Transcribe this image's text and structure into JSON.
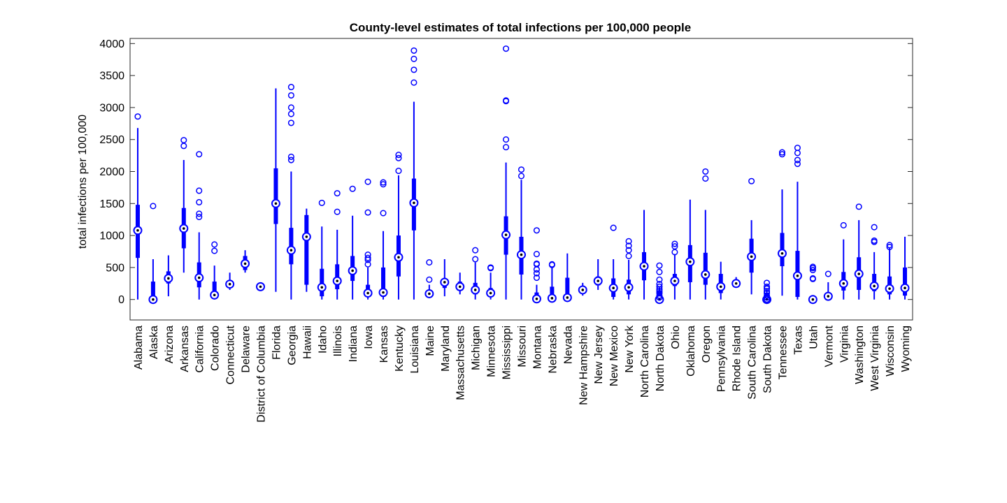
{
  "chart_data": {
    "type": "boxplot",
    "title": "County-level estimates of total infections per 100,000 people",
    "ylabel": "total infections per 100,000",
    "xlabel": "",
    "ylim": [
      -320,
      4080
    ],
    "yticks": [
      0,
      500,
      1000,
      1500,
      2000,
      2500,
      3000,
      3500,
      4000
    ],
    "grid": false,
    "color": "#0000ff",
    "categories": [
      "Alabama",
      "Alaska",
      "Arizona",
      "Arkansas",
      "California",
      "Colorado",
      "Connecticut",
      "Delaware",
      "District of Columbia",
      "Florida",
      "Georgia",
      "Hawaii",
      "Idaho",
      "Illinois",
      "Indiana",
      "Iowa",
      "Kansas",
      "Kentucky",
      "Louisiana",
      "Maine",
      "Maryland",
      "Massachusetts",
      "Michigan",
      "Minnesota",
      "Mississippi",
      "Missouri",
      "Montana",
      "Nebraska",
      "Nevada",
      "New Hampshire",
      "New Jersey",
      "New Mexico",
      "New York",
      "North Carolina",
      "North Dakota",
      "Ohio",
      "Oklahoma",
      "Oregon",
      "Pennsylvania",
      "Rhode Island",
      "South Carolina",
      "South Dakota",
      "Tennessee",
      "Texas",
      "Utah",
      "Vermont",
      "Virginia",
      "Washington",
      "West Virginia",
      "Wisconsin",
      "Wyoming"
    ],
    "boxes": [
      {
        "whisker_low": 0,
        "q1": 650,
        "median": 1080,
        "q3": 1480,
        "whisker_high": 2680,
        "outliers": [
          2860
        ]
      },
      {
        "whisker_low": 0,
        "q1": 0,
        "median": 0,
        "q3": 280,
        "whisker_high": 630,
        "outliers": [
          1460
        ]
      },
      {
        "whisker_low": 50,
        "q1": 250,
        "median": 330,
        "q3": 440,
        "whisker_high": 690,
        "outliers": []
      },
      {
        "whisker_low": 420,
        "q1": 800,
        "median": 1110,
        "q3": 1430,
        "whisker_high": 2180,
        "outliers": [
          2400,
          2490
        ]
      },
      {
        "whisker_low": 0,
        "q1": 190,
        "median": 340,
        "q3": 580,
        "whisker_high": 1050,
        "outliers": [
          1290,
          1340,
          1520,
          1700,
          2270
        ]
      },
      {
        "whisker_low": 0,
        "q1": 30,
        "median": 70,
        "q3": 280,
        "whisker_high": 530,
        "outliers": [
          760,
          860
        ]
      },
      {
        "whisker_low": 150,
        "q1": 190,
        "median": 240,
        "q3": 300,
        "whisker_high": 420,
        "outliers": []
      },
      {
        "whisker_low": 420,
        "q1": 460,
        "median": 560,
        "q3": 680,
        "whisker_high": 770,
        "outliers": []
      },
      {
        "whisker_low": 200,
        "q1": 200,
        "median": 200,
        "q3": 200,
        "whisker_high": 200,
        "outliers": []
      },
      {
        "whisker_low": 120,
        "q1": 1180,
        "median": 1500,
        "q3": 2050,
        "whisker_high": 3300,
        "outliers": []
      },
      {
        "whisker_low": 0,
        "q1": 550,
        "median": 770,
        "q3": 1120,
        "whisker_high": 2000,
        "outliers": [
          2180,
          2230,
          2760,
          2900,
          3000,
          3190,
          3320
        ]
      },
      {
        "whisker_low": 120,
        "q1": 230,
        "median": 980,
        "q3": 1320,
        "whisker_high": 1420,
        "outliers": []
      },
      {
        "whisker_low": 0,
        "q1": 50,
        "median": 190,
        "q3": 480,
        "whisker_high": 1140,
        "outliers": [
          1510
        ]
      },
      {
        "whisker_low": 0,
        "q1": 160,
        "median": 290,
        "q3": 550,
        "whisker_high": 1090,
        "outliers": [
          1370,
          1660
        ]
      },
      {
        "whisker_low": 0,
        "q1": 290,
        "median": 450,
        "q3": 680,
        "whisker_high": 1310,
        "outliers": [
          1730
        ]
      },
      {
        "whisker_low": 0,
        "q1": 50,
        "median": 100,
        "q3": 230,
        "whisker_high": 500,
        "outliers": [
          550,
          620,
          650,
          700,
          1360,
          1840
        ]
      },
      {
        "whisker_low": 0,
        "q1": 40,
        "median": 110,
        "q3": 500,
        "whisker_high": 1070,
        "outliers": [
          1350,
          1800,
          1830
        ]
      },
      {
        "whisker_low": 0,
        "q1": 360,
        "median": 660,
        "q3": 1000,
        "whisker_high": 1940,
        "outliers": [
          2010,
          2210,
          2260
        ]
      },
      {
        "whisker_low": 0,
        "q1": 1080,
        "median": 1510,
        "q3": 1890,
        "whisker_high": 3090,
        "outliers": [
          3390,
          3590,
          3760,
          3890
        ]
      },
      {
        "whisker_low": 30,
        "q1": 50,
        "median": 90,
        "q3": 150,
        "whisker_high": 230,
        "outliers": [
          310,
          580
        ]
      },
      {
        "whisker_low": 50,
        "q1": 180,
        "median": 270,
        "q3": 320,
        "whisker_high": 630,
        "outliers": []
      },
      {
        "whisker_low": 80,
        "q1": 140,
        "median": 200,
        "q3": 280,
        "whisker_high": 420,
        "outliers": []
      },
      {
        "whisker_low": 0,
        "q1": 80,
        "median": 150,
        "q3": 260,
        "whisker_high": 580,
        "outliers": [
          630,
          770
        ]
      },
      {
        "whisker_low": 0,
        "q1": 50,
        "median": 100,
        "q3": 180,
        "whisker_high": 420,
        "outliers": [
          490,
          500
        ]
      },
      {
        "whisker_low": 0,
        "q1": 700,
        "median": 1010,
        "q3": 1300,
        "whisker_high": 2140,
        "outliers": [
          2380,
          2500,
          3100,
          3110,
          3920
        ]
      },
      {
        "whisker_low": 0,
        "q1": 390,
        "median": 700,
        "q3": 980,
        "whisker_high": 1870,
        "outliers": [
          1930,
          2030
        ]
      },
      {
        "whisker_low": 0,
        "q1": 0,
        "median": 10,
        "q3": 110,
        "whisker_high": 230,
        "outliers": [
          340,
          410,
          470,
          550,
          560,
          710,
          1080
        ]
      },
      {
        "whisker_low": 0,
        "q1": 0,
        "median": 20,
        "q3": 200,
        "whisker_high": 500,
        "outliers": [
          540,
          550
        ]
      },
      {
        "whisker_low": 0,
        "q1": 0,
        "median": 30,
        "q3": 340,
        "whisker_high": 720,
        "outliers": []
      },
      {
        "whisker_low": 60,
        "q1": 100,
        "median": 150,
        "q3": 190,
        "whisker_high": 260,
        "outliers": []
      },
      {
        "whisker_low": 150,
        "q1": 220,
        "median": 290,
        "q3": 360,
        "whisker_high": 630,
        "outliers": []
      },
      {
        "whisker_low": 0,
        "q1": 40,
        "median": 180,
        "q3": 330,
        "whisker_high": 630,
        "outliers": [
          1120
        ]
      },
      {
        "whisker_low": 0,
        "q1": 80,
        "median": 190,
        "q3": 310,
        "whisker_high": 620,
        "outliers": [
          680,
          770,
          840,
          910
        ]
      },
      {
        "whisker_low": 0,
        "q1": 300,
        "median": 520,
        "q3": 740,
        "whisker_high": 1400,
        "outliers": []
      },
      {
        "whisker_low": 0,
        "q1": 0,
        "median": 0,
        "q3": 130,
        "whisker_high": 190,
        "outliers": [
          30,
          60,
          100,
          130,
          160,
          200,
          240,
          310,
          430,
          530
        ]
      },
      {
        "whisker_low": 0,
        "q1": 210,
        "median": 290,
        "q3": 400,
        "whisker_high": 710,
        "outliers": [
          740,
          830,
          870
        ]
      },
      {
        "whisker_low": 0,
        "q1": 270,
        "median": 590,
        "q3": 850,
        "whisker_high": 1560,
        "outliers": []
      },
      {
        "whisker_low": 0,
        "q1": 230,
        "median": 390,
        "q3": 730,
        "whisker_high": 1400,
        "outliers": [
          1890,
          2000
        ]
      },
      {
        "whisker_low": 0,
        "q1": 100,
        "median": 200,
        "q3": 400,
        "whisker_high": 590,
        "outliers": []
      },
      {
        "whisker_low": 200,
        "q1": 220,
        "median": 250,
        "q3": 280,
        "whisker_high": 350,
        "outliers": []
      },
      {
        "whisker_low": 80,
        "q1": 420,
        "median": 670,
        "q3": 950,
        "whisker_high": 1240,
        "outliers": [
          1850
        ]
      },
      {
        "whisker_low": 0,
        "q1": 0,
        "median": 0,
        "q3": 90,
        "whisker_high": 150,
        "outliers": [
          0,
          30,
          60,
          100,
          130,
          170,
          200,
          260
        ]
      },
      {
        "whisker_low": 60,
        "q1": 520,
        "median": 720,
        "q3": 1040,
        "whisker_high": 1720,
        "outliers": [
          2270,
          2300
        ]
      },
      {
        "whisker_low": 0,
        "q1": 40,
        "median": 370,
        "q3": 760,
        "whisker_high": 1840,
        "outliers": [
          2120,
          2180,
          2290,
          2370
        ]
      },
      {
        "whisker_low": 0,
        "q1": 0,
        "median": 0,
        "q3": 30,
        "whisker_high": 60,
        "outliers": [
          320,
          330,
          460,
          490,
          510
        ]
      },
      {
        "whisker_low": 0,
        "q1": 30,
        "median": 50,
        "q3": 110,
        "whisker_high": 270,
        "outliers": [
          400
        ]
      },
      {
        "whisker_low": 0,
        "q1": 140,
        "median": 250,
        "q3": 430,
        "whisker_high": 940,
        "outliers": [
          1160
        ]
      },
      {
        "whisker_low": 0,
        "q1": 150,
        "median": 400,
        "q3": 660,
        "whisker_high": 1240,
        "outliers": [
          1450
        ]
      },
      {
        "whisker_low": 0,
        "q1": 130,
        "median": 210,
        "q3": 400,
        "whisker_high": 740,
        "outliers": [
          900,
          920,
          1130
        ]
      },
      {
        "whisker_low": 0,
        "q1": 80,
        "median": 170,
        "q3": 360,
        "whisker_high": 800,
        "outliers": [
          820,
          850
        ]
      },
      {
        "whisker_low": 0,
        "q1": 60,
        "median": 180,
        "q3": 500,
        "whisker_high": 980,
        "outliers": []
      }
    ]
  }
}
